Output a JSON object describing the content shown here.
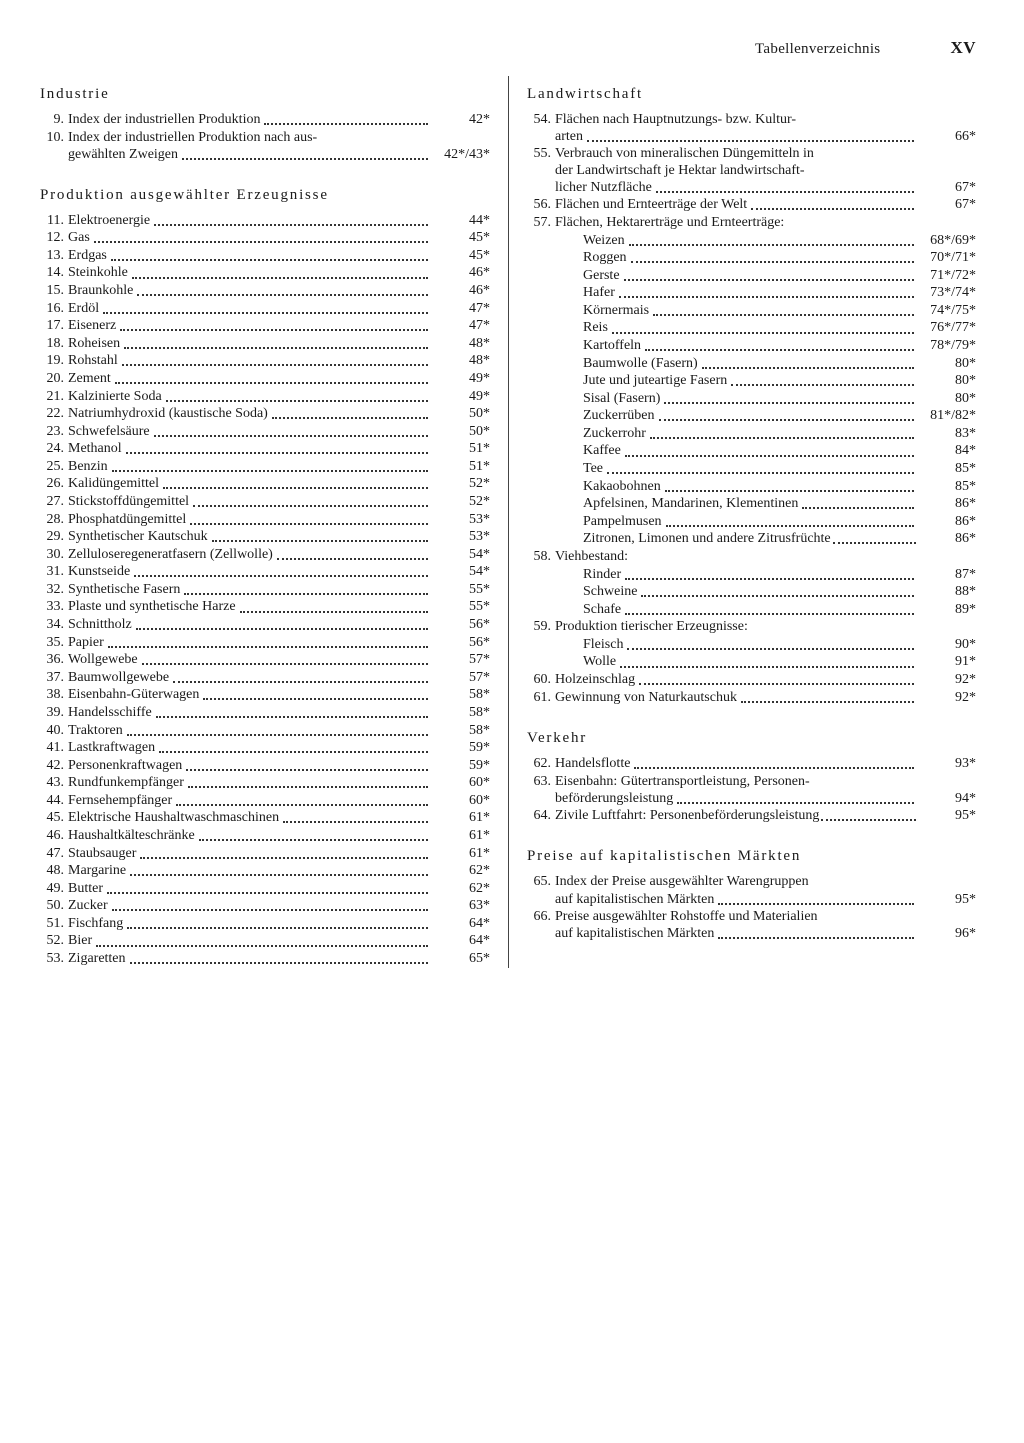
{
  "header": {
    "title": "Tabellenverzeichnis",
    "page_number": "XV"
  },
  "left": {
    "sections": [
      {
        "heading": "Industrie",
        "entries": [
          {
            "n": "9.",
            "label": "Index der industriellen Produktion",
            "page": "42*"
          },
          {
            "n": "10.",
            "wrap": [
              "Index der industriellen Produktion nach aus-",
              "gewählten Zweigen"
            ],
            "page": "42*/43*"
          }
        ]
      },
      {
        "heading": "Produktion ausgewählter Erzeugnisse",
        "entries": [
          {
            "n": "11.",
            "label": "Elektroenergie",
            "page": "44*"
          },
          {
            "n": "12.",
            "label": "Gas",
            "page": "45*"
          },
          {
            "n": "13.",
            "label": "Erdgas",
            "page": "45*"
          },
          {
            "n": "14.",
            "label": "Steinkohle",
            "page": "46*"
          },
          {
            "n": "15.",
            "label": "Braunkohle",
            "page": "46*"
          },
          {
            "n": "16.",
            "label": "Erdöl",
            "page": "47*"
          },
          {
            "n": "17.",
            "label": "Eisenerz",
            "page": "47*"
          },
          {
            "n": "18.",
            "label": "Roheisen",
            "page": "48*"
          },
          {
            "n": "19.",
            "label": "Rohstahl",
            "page": "48*"
          },
          {
            "n": "20.",
            "label": "Zement",
            "page": "49*"
          },
          {
            "n": "21.",
            "label": "Kalzinierte Soda",
            "page": "49*"
          },
          {
            "n": "22.",
            "label": "Natriumhydroxid (kaustische Soda)",
            "page": "50*"
          },
          {
            "n": "23.",
            "label": "Schwefelsäure",
            "page": "50*"
          },
          {
            "n": "24.",
            "label": "Methanol",
            "page": "51*"
          },
          {
            "n": "25.",
            "label": "Benzin",
            "page": "51*"
          },
          {
            "n": "26.",
            "label": "Kalidüngemittel",
            "page": "52*"
          },
          {
            "n": "27.",
            "label": "Stickstoffdüngemittel",
            "page": "52*"
          },
          {
            "n": "28.",
            "label": "Phosphatdüngemittel",
            "page": "53*"
          },
          {
            "n": "29.",
            "label": "Synthetischer Kautschuk",
            "page": "53*"
          },
          {
            "n": "30.",
            "label": "Zelluloseregeneratfasern (Zellwolle)",
            "page": "54*"
          },
          {
            "n": "31.",
            "label": "Kunstseide",
            "page": "54*"
          },
          {
            "n": "32.",
            "label": "Synthetische Fasern",
            "page": "55*"
          },
          {
            "n": "33.",
            "label": "Plaste und synthetische Harze",
            "page": "55*"
          },
          {
            "n": "34.",
            "label": "Schnittholz",
            "page": "56*"
          },
          {
            "n": "35.",
            "label": "Papier",
            "page": "56*"
          },
          {
            "n": "36.",
            "label": "Wollgewebe",
            "page": "57*"
          },
          {
            "n": "37.",
            "label": "Baumwollgewebe",
            "page": "57*"
          },
          {
            "n": "38.",
            "label": "Eisenbahn-Güterwagen",
            "page": "58*"
          },
          {
            "n": "39.",
            "label": "Handelsschiffe",
            "page": "58*"
          },
          {
            "n": "40.",
            "label": "Traktoren",
            "page": "58*"
          },
          {
            "n": "41.",
            "label": "Lastkraftwagen",
            "page": "59*"
          },
          {
            "n": "42.",
            "label": "Personenkraftwagen",
            "page": "59*"
          },
          {
            "n": "43.",
            "label": "Rundfunkempfänger",
            "page": "60*"
          },
          {
            "n": "44.",
            "label": "Fernsehempfänger",
            "page": "60*"
          },
          {
            "n": "45.",
            "label": "Elektrische Haushaltwaschmaschinen",
            "page": "61*"
          },
          {
            "n": "46.",
            "label": "Haushaltkälteschränke",
            "page": "61*"
          },
          {
            "n": "47.",
            "label": "Staubsauger",
            "page": "61*"
          },
          {
            "n": "48.",
            "label": "Margarine",
            "page": "62*"
          },
          {
            "n": "49.",
            "label": "Butter",
            "page": "62*"
          },
          {
            "n": "50.",
            "label": "Zucker",
            "page": "63*"
          },
          {
            "n": "51.",
            "label": "Fischfang",
            "page": "64*"
          },
          {
            "n": "52.",
            "label": "Bier",
            "page": "64*"
          },
          {
            "n": "53.",
            "label": "Zigaretten",
            "page": "65*"
          }
        ]
      }
    ]
  },
  "right": {
    "sections": [
      {
        "heading": "Landwirtschaft",
        "entries": [
          {
            "n": "54.",
            "wrap": [
              "Flächen nach Hauptnutzungs- bzw. Kultur-",
              "arten"
            ],
            "page": "66*"
          },
          {
            "n": "55.",
            "wrap": [
              "Verbrauch von mineralischen Düngemitteln in",
              "der Landwirtschaft je Hektar landwirtschaft-",
              "licher Nutzfläche"
            ],
            "page": "67*"
          },
          {
            "n": "56.",
            "label": "Flächen und Ernteerträge der Welt",
            "page": "67*"
          },
          {
            "n": "57.",
            "label": "Flächen, Hektarerträge und Ernteerträge:",
            "nopage": true
          },
          {
            "sub": true,
            "label": "Weizen",
            "page": "68*/69*"
          },
          {
            "sub": true,
            "label": "Roggen",
            "page": "70*/71*"
          },
          {
            "sub": true,
            "label": "Gerste",
            "page": "71*/72*"
          },
          {
            "sub": true,
            "label": "Hafer",
            "page": "73*/74*"
          },
          {
            "sub": true,
            "label": "Körnermais",
            "page": "74*/75*"
          },
          {
            "sub": true,
            "label": "Reis",
            "page": "76*/77*"
          },
          {
            "sub": true,
            "label": "Kartoffeln",
            "page": "78*/79*"
          },
          {
            "sub": true,
            "label": "Baumwolle (Fasern)",
            "page": "80*"
          },
          {
            "sub": true,
            "label": "Jute und juteartige Fasern",
            "page": "80*"
          },
          {
            "sub": true,
            "label": "Sisal (Fasern)",
            "page": "80*"
          },
          {
            "sub": true,
            "label": "Zuckerrüben",
            "page": "81*/82*"
          },
          {
            "sub": true,
            "label": "Zuckerrohr",
            "page": "83*"
          },
          {
            "sub": true,
            "label": "Kaffee",
            "page": "84*"
          },
          {
            "sub": true,
            "label": "Tee",
            "page": "85*"
          },
          {
            "sub": true,
            "label": "Kakaobohnen",
            "page": "85*"
          },
          {
            "sub": true,
            "label": "Apfelsinen, Mandarinen, Klementinen",
            "page": "86*"
          },
          {
            "sub": true,
            "label": "Pampelmusen",
            "page": "86*"
          },
          {
            "sub": true,
            "label": "Zitronen, Limonen und andere Zitrusfrüchte",
            "page": "86*",
            "tightdots": true
          },
          {
            "n": "58.",
            "label": "Viehbestand:",
            "nopage": true
          },
          {
            "sub": true,
            "label": "Rinder",
            "page": "87*"
          },
          {
            "sub": true,
            "label": "Schweine",
            "page": "88*"
          },
          {
            "sub": true,
            "label": "Schafe",
            "page": "89*"
          },
          {
            "n": "59.",
            "label": "Produktion tierischer Erzeugnisse:",
            "nopage": true
          },
          {
            "sub": true,
            "label": "Fleisch",
            "page": "90*"
          },
          {
            "sub": true,
            "label": "Wolle",
            "page": "91*"
          },
          {
            "n": "60.",
            "label": "Holzeinschlag",
            "page": "92*"
          },
          {
            "n": "61.",
            "label": "Gewinnung von Naturkautschuk",
            "page": "92*"
          }
        ]
      },
      {
        "heading": "Verkehr",
        "entries": [
          {
            "n": "62.",
            "label": "Handelsflotte",
            "page": "93*"
          },
          {
            "n": "63.",
            "wrap": [
              "Eisenbahn: Gütertransportleistung, Personen-",
              "beförderungsleistung"
            ],
            "page": "94*"
          },
          {
            "n": "64.",
            "label": "Zivile Luftfahrt: Personenbeförderungsleistung",
            "page": "95*",
            "tightdots": true
          }
        ]
      },
      {
        "heading": "Preise auf kapitalistischen Märkten",
        "entries": [
          {
            "n": "65.",
            "wrap": [
              "Index der Preise ausgewählter Warengruppen",
              "auf kapitalistischen Märkten"
            ],
            "page": "95*"
          },
          {
            "n": "66.",
            "wrap": [
              "Preise ausgewählter Rohstoffe und Materialien",
              "auf kapitalistischen Märkten"
            ],
            "page": "96*"
          }
        ]
      }
    ]
  }
}
